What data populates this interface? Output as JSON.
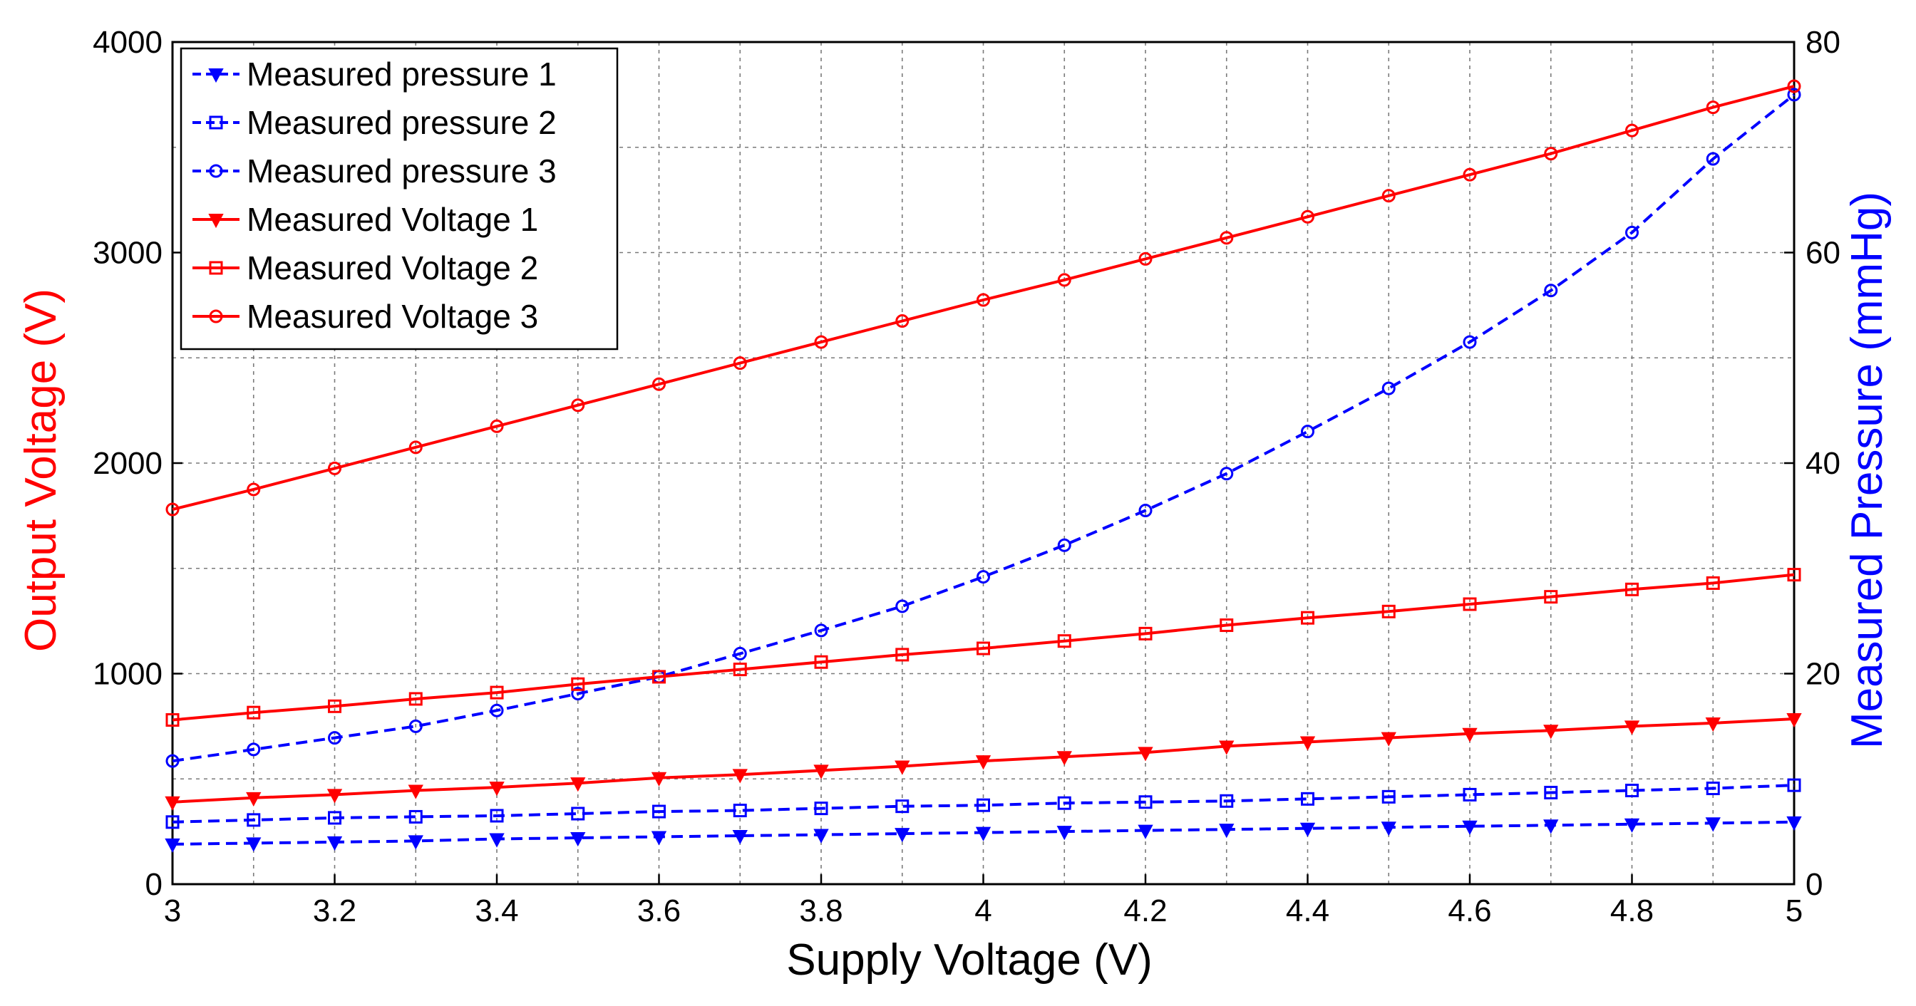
{
  "chart_data": {
    "type": "line",
    "xlabel": "Supply Voltage (V)",
    "ylabel_left": "Output Voltage (V)",
    "ylabel_right": "Measured Pressure (mmHg)",
    "xlim": [
      3,
      5
    ],
    "ylim_left": [
      0,
      4000
    ],
    "ylim_right": [
      0,
      80
    ],
    "grid": true,
    "legend_position": "top-left",
    "x_ticks": [
      "3",
      "3.2",
      "3.4",
      "3.6",
      "3.8",
      "4",
      "4.2",
      "4.4",
      "4.6",
      "4.8",
      "5"
    ],
    "y_ticks_left": [
      "0",
      "1000",
      "2000",
      "3000",
      "4000"
    ],
    "y_ticks_right": [
      "0",
      "20",
      "40",
      "60",
      "80"
    ],
    "x": [
      3.0,
      3.1,
      3.2,
      3.3,
      3.4,
      3.5,
      3.6,
      3.7,
      3.8,
      3.9,
      4.0,
      4.1,
      4.2,
      4.3,
      4.4,
      4.5,
      4.6,
      4.7,
      4.8,
      4.9,
      5.0
    ],
    "series": [
      {
        "name": "Measured pressure 1",
        "axis": "right",
        "color": "#0000ff",
        "dash": "dashed",
        "marker": "triangle-down",
        "values": [
          3.8,
          3.9,
          4.0,
          4.1,
          4.3,
          4.4,
          4.5,
          4.6,
          4.7,
          4.8,
          4.9,
          5.0,
          5.1,
          5.2,
          5.3,
          5.4,
          5.5,
          5.6,
          5.7,
          5.8,
          5.9
        ]
      },
      {
        "name": "Measured pressure 2",
        "axis": "right",
        "color": "#0000ff",
        "dash": "dashed",
        "marker": "square",
        "values": [
          5.9,
          6.1,
          6.3,
          6.4,
          6.5,
          6.7,
          6.9,
          7.0,
          7.2,
          7.4,
          7.5,
          7.7,
          7.8,
          7.9,
          8.1,
          8.3,
          8.5,
          8.7,
          8.9,
          9.1,
          9.4
        ]
      },
      {
        "name": "Measured pressure 3",
        "axis": "right",
        "color": "#0000ff",
        "dash": "dashed",
        "marker": "circle",
        "values": [
          11.7,
          12.8,
          13.9,
          15.0,
          16.5,
          18.1,
          19.7,
          21.9,
          24.1,
          26.4,
          29.2,
          32.2,
          35.5,
          39.0,
          43.0,
          47.1,
          51.5,
          56.4,
          61.9,
          68.9,
          75.0
        ]
      },
      {
        "name": "Measured Voltage 1",
        "axis": "left",
        "color": "#ff0000",
        "dash": "solid",
        "marker": "triangle-down",
        "values": [
          390,
          410,
          425,
          445,
          460,
          480,
          505,
          520,
          540,
          560,
          585,
          605,
          625,
          655,
          675,
          695,
          715,
          730,
          750,
          765,
          785
        ]
      },
      {
        "name": "Measured Voltage 2",
        "axis": "left",
        "color": "#ff0000",
        "dash": "solid",
        "marker": "square",
        "values": [
          780,
          815,
          845,
          880,
          910,
          950,
          985,
          1020,
          1055,
          1090,
          1120,
          1155,
          1190,
          1230,
          1265,
          1295,
          1330,
          1365,
          1400,
          1430,
          1470
        ]
      },
      {
        "name": "Measured Voltage 3",
        "axis": "left",
        "color": "#ff0000",
        "dash": "solid",
        "marker": "circle",
        "values": [
          1780,
          1875,
          1975,
          2075,
          2175,
          2275,
          2375,
          2475,
          2575,
          2675,
          2775,
          2870,
          2970,
          3070,
          3170,
          3270,
          3370,
          3470,
          3580,
          3690,
          3790
        ]
      }
    ]
  }
}
